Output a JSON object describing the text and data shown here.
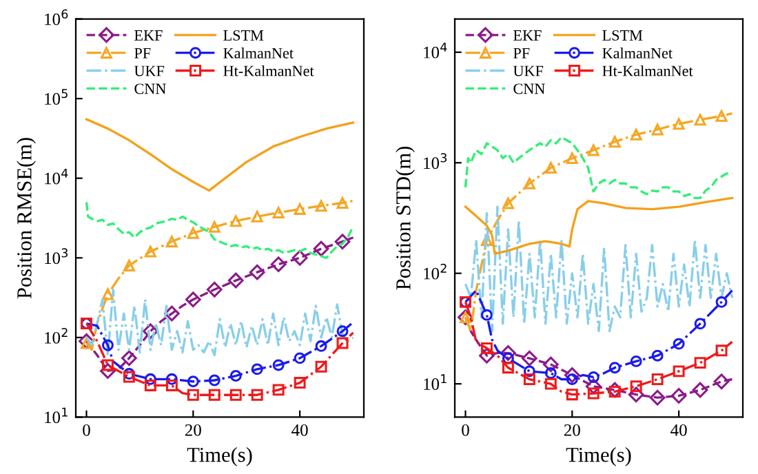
{
  "chart_data": [
    {
      "type": "line",
      "ylabel": "Position RMSE(m)",
      "xlabel": "Time(s)",
      "log": "y",
      "xlim": [
        -2,
        52
      ],
      "xticks": [
        0,
        20,
        40
      ],
      "ylim": [
        10,
        1000000
      ],
      "yticks": [
        {
          "value": 10,
          "label": "10$^{1}$"
        },
        {
          "value": 100,
          "label": "10$^{2}$"
        },
        {
          "value": 1000,
          "label": "10$^{3}$"
        },
        {
          "value": 10000,
          "label": "10$^{4}$"
        },
        {
          "value": 100000,
          "label": "10$^{5}$"
        },
        {
          "value": 1000000,
          "label": "10$^{6}$"
        }
      ],
      "grid": false,
      "legend": "top left",
      "series": [
        {
          "name": "EKF",
          "color": "#8b1a89",
          "marker": "diamond",
          "line_style": "dashed",
          "x": [
            0,
            2,
            4,
            6,
            8,
            10,
            12,
            14,
            16,
            18,
            20,
            24,
            28,
            32,
            36,
            40,
            44,
            48,
            50
          ],
          "values": [
            90,
            60,
            38,
            40,
            55,
            80,
            120,
            160,
            200,
            250,
            300,
            400,
            520,
            660,
            830,
            1000,
            1300,
            1600,
            1800
          ]
        },
        {
          "name": "PF",
          "color": "#f5a623",
          "marker": "triangle",
          "line_style": "dashdot",
          "x": [
            0,
            1,
            2,
            4,
            6,
            8,
            12,
            16,
            20,
            24,
            28,
            32,
            36,
            40,
            44,
            48,
            50
          ],
          "values": [
            85,
            70,
            150,
            350,
            550,
            800,
            1200,
            1600,
            2050,
            2450,
            2900,
            3300,
            3700,
            4100,
            4500,
            4900,
            5200
          ]
        },
        {
          "name": "UKF",
          "color": "#87ceeb",
          "marker": "none",
          "line_style": "dashdot",
          "x": [
            0,
            1,
            2,
            3,
            4,
            5,
            6,
            7,
            8,
            9,
            10,
            11,
            12,
            13,
            14,
            15,
            16,
            17,
            18,
            19,
            20,
            21,
            22,
            23,
            24,
            25,
            26,
            27,
            28,
            29,
            30,
            31,
            32,
            33,
            34,
            35,
            36,
            37,
            38,
            39,
            40,
            41,
            42,
            43,
            44,
            45,
            46,
            47,
            48,
            49,
            50
          ],
          "values": [
            100,
            80,
            150,
            300,
            60,
            400,
            70,
            200,
            70,
            250,
            65,
            300,
            70,
            150,
            80,
            250,
            70,
            120,
            65,
            160,
            70,
            80,
            65,
            90,
            60,
            170,
            75,
            150,
            80,
            160,
            75,
            140,
            80,
            170,
            80,
            200,
            80,
            180,
            90,
            120,
            80,
            200,
            90,
            250,
            100,
            180,
            100,
            260,
            110,
            90,
            100
          ]
        },
        {
          "name": "CNN",
          "color": "#33ee77",
          "marker": "none",
          "line_style": "dashed",
          "x": [
            0,
            0.3,
            1,
            2,
            3,
            4,
            5,
            6,
            7,
            8,
            9,
            10,
            11,
            12,
            13,
            14,
            15,
            16,
            17,
            18,
            19,
            20,
            21,
            22,
            23,
            24,
            25,
            26,
            27,
            28,
            29,
            30,
            31,
            32,
            33,
            34,
            35,
            36,
            37,
            38,
            39,
            40,
            41,
            42,
            43,
            44,
            45,
            46,
            47,
            48,
            49,
            50
          ],
          "values": [
            5000,
            3300,
            3100,
            2900,
            3000,
            2600,
            2700,
            2300,
            2000,
            2100,
            1800,
            2100,
            2300,
            2400,
            2700,
            2800,
            2900,
            3100,
            3000,
            3300,
            3000,
            2800,
            2500,
            2300,
            2100,
            1700,
            1600,
            1500,
            1400,
            1450,
            1350,
            1400,
            1300,
            1350,
            1250,
            1300,
            1200,
            1250,
            1150,
            1200,
            1250,
            1200,
            1300,
            1150,
            1100,
            1050,
            1000,
            1200,
            1400,
            1500,
            1800,
            2500
          ]
        },
        {
          "name": "LSTM",
          "color": "#f5a01a",
          "marker": "none",
          "line_style": "solid",
          "x": [
            0,
            4,
            8,
            12,
            16,
            20,
            23,
            26,
            30,
            35,
            40,
            45,
            50
          ],
          "values": [
            55000,
            42000,
            30000,
            20000,
            13000,
            9000,
            7000,
            10000,
            16000,
            25000,
            33000,
            42000,
            50000
          ]
        },
        {
          "name": "KalmanNet",
          "color": "#1a1aee",
          "marker": "circle",
          "line_style": "dashdot",
          "x": [
            0,
            2,
            4,
            5,
            8,
            12,
            16,
            20,
            24,
            28,
            32,
            36,
            40,
            44,
            48,
            50
          ],
          "values": [
            150,
            140,
            80,
            50,
            35,
            30,
            30,
            28,
            29,
            33,
            40,
            45,
            55,
            78,
            120,
            155
          ]
        },
        {
          "name": "Ht-KalmanNet",
          "color": "#ee1a1a",
          "marker": "square",
          "line_style": "dashdot",
          "x": [
            0,
            2,
            4,
            8,
            12,
            16,
            18,
            20,
            24,
            28,
            32,
            36,
            40,
            44,
            48,
            50
          ],
          "values": [
            150,
            90,
            45,
            32,
            25,
            25,
            20,
            19,
            19,
            19,
            19,
            22,
            27,
            43,
            85,
            115
          ]
        }
      ]
    },
    {
      "type": "line",
      "ylabel": "Position STD(m)",
      "xlabel": "Time(s)",
      "log": "y",
      "xlim": [
        -2,
        52
      ],
      "xticks": [
        0,
        20,
        40
      ],
      "ylim": [
        5,
        20000
      ],
      "yticks": [
        {
          "value": 10,
          "label": "10$^{1}$"
        },
        {
          "value": 100,
          "label": "10$^{2}$"
        },
        {
          "value": 1000,
          "label": "10$^{3}$"
        },
        {
          "value": 10000,
          "label": "10$^{4}$"
        }
      ],
      "grid": false,
      "legend": "top left",
      "series": [
        {
          "name": "EKF",
          "color": "#8b1a89",
          "marker": "diamond",
          "line_style": "dashed",
          "x": [
            0,
            1,
            2,
            4,
            6,
            8,
            12,
            16,
            20,
            24,
            28,
            32,
            36,
            40,
            44,
            48,
            50
          ],
          "values": [
            40,
            30,
            25,
            18,
            19,
            19,
            17,
            15,
            12,
            9.5,
            8.8,
            8,
            7.5,
            7.8,
            8.8,
            10.5,
            11
          ]
        },
        {
          "name": "PF",
          "color": "#f5a623",
          "marker": "triangle",
          "line_style": "dashdot",
          "x": [
            0,
            1,
            2,
            4,
            6,
            8,
            12,
            16,
            20,
            24,
            28,
            32,
            36,
            40,
            44,
            48,
            50
          ],
          "values": [
            40,
            30,
            70,
            200,
            300,
            430,
            650,
            900,
            1100,
            1300,
            1550,
            1800,
            2000,
            2250,
            2450,
            2650,
            2800
          ]
        },
        {
          "name": "UKF",
          "color": "#87ceeb",
          "marker": "none",
          "line_style": "dashdot",
          "x": [
            0,
            1,
            2,
            3,
            4,
            5,
            6,
            7,
            8,
            9,
            10,
            11,
            12,
            13,
            14,
            15,
            16,
            17,
            18,
            19,
            20,
            21,
            22,
            23,
            24,
            25,
            26,
            27,
            28,
            29,
            30,
            31,
            32,
            33,
            34,
            35,
            36,
            37,
            38,
            39,
            40,
            41,
            42,
            43,
            44,
            45,
            46,
            47,
            48,
            49,
            50
          ],
          "values": [
            80,
            60,
            200,
            40,
            350,
            30,
            400,
            35,
            250,
            40,
            300,
            35,
            150,
            40,
            200,
            35,
            150,
            40,
            200,
            35,
            100,
            40,
            150,
            35,
            80,
            30,
            170,
            30,
            50,
            40,
            180,
            40,
            150,
            45,
            60,
            180,
            50,
            80,
            45,
            150,
            50,
            120,
            50,
            200,
            60,
            180,
            60,
            150,
            60,
            100,
            60
          ]
        },
        {
          "name": "CNN",
          "color": "#33ee77",
          "marker": "none",
          "line_style": "dashed",
          "x": [
            0,
            0.5,
            1,
            2,
            3,
            4,
            5,
            6,
            7,
            8,
            9,
            10,
            11,
            12,
            13,
            14,
            15,
            16,
            17,
            18,
            19,
            20,
            21,
            22,
            23,
            24,
            25,
            26,
            27,
            28,
            29,
            30,
            31,
            32,
            33,
            34,
            35,
            36,
            37,
            38,
            39,
            40,
            41,
            42,
            43,
            44,
            45,
            46,
            47,
            48,
            49,
            50
          ],
          "values": [
            600,
            1100,
            1000,
            1300,
            1200,
            1500,
            1400,
            1300,
            1100,
            1200,
            1000,
            1100,
            1200,
            1300,
            1400,
            1500,
            1400,
            1600,
            1500,
            1700,
            1600,
            1500,
            1300,
            1100,
            900,
            550,
            650,
            700,
            650,
            700,
            650,
            650,
            600,
            600,
            550,
            520,
            560,
            550,
            600,
            600,
            550,
            550,
            500,
            520,
            480,
            480,
            560,
            600,
            700,
            750,
            800,
            800
          ]
        },
        {
          "name": "LSTM",
          "color": "#f5a01a",
          "marker": "none",
          "line_style": "solid",
          "x": [
            0,
            2,
            4,
            5,
            5.5,
            8,
            12,
            15,
            18,
            19.5,
            20,
            21,
            23,
            26,
            30,
            35,
            40,
            45,
            50
          ],
          "values": [
            400,
            330,
            270,
            220,
            150,
            160,
            185,
            195,
            185,
            175,
            250,
            380,
            450,
            430,
            390,
            380,
            400,
            440,
            480
          ]
        },
        {
          "name": "KalmanNet",
          "color": "#1a1aee",
          "marker": "circle",
          "line_style": "dashdot",
          "x": [
            0,
            2,
            4,
            5,
            6,
            8,
            12,
            16,
            18,
            20,
            22,
            24,
            26,
            28,
            32,
            36,
            40,
            44,
            48,
            50
          ],
          "values": [
            55,
            70,
            42,
            25,
            20,
            17,
            13,
            12.5,
            11,
            11,
            12,
            11.5,
            12.5,
            14,
            16,
            18,
            23,
            35,
            55,
            70
          ]
        },
        {
          "name": "Ht-KalmanNet",
          "color": "#ee1a1a",
          "marker": "square",
          "line_style": "dashdot",
          "x": [
            0,
            1,
            2,
            4,
            6,
            8,
            12,
            16,
            18,
            20,
            24,
            28,
            32,
            36,
            40,
            44,
            48,
            50
          ],
          "values": [
            55,
            40,
            24,
            21,
            18,
            14,
            11,
            10,
            8.5,
            8,
            8.2,
            8.5,
            9.5,
            11,
            13,
            15.5,
            20,
            24
          ]
        }
      ]
    }
  ]
}
